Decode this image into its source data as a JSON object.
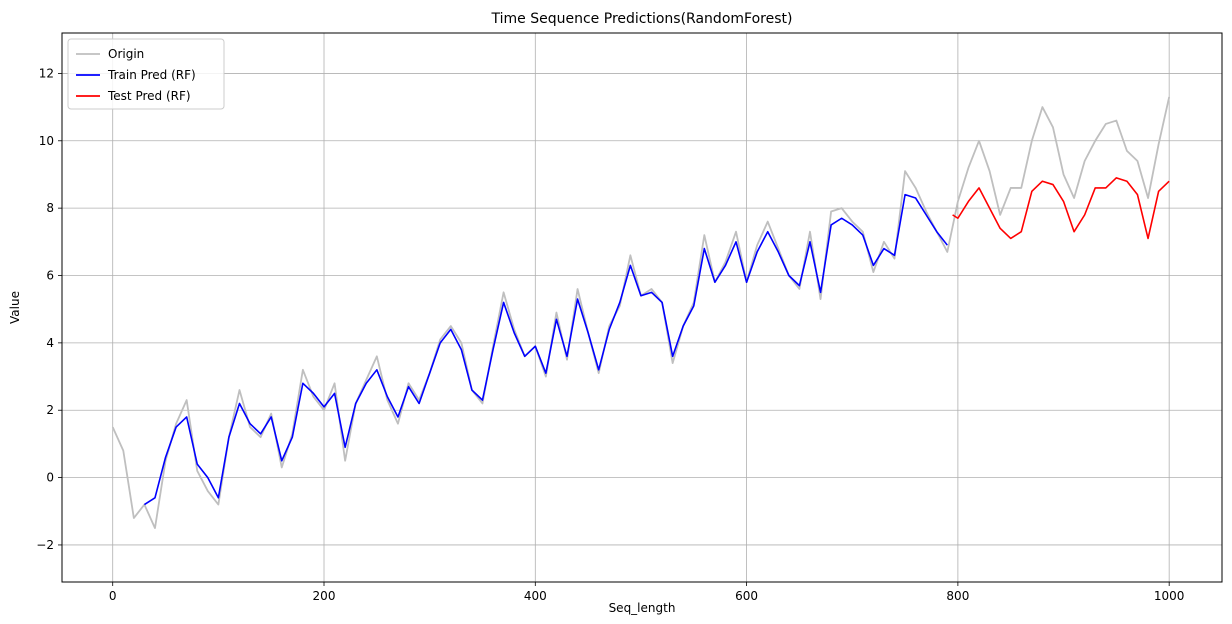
{
  "chart_data": {
    "type": "line",
    "title": "Time Sequence Predictions(RandomForest)",
    "xlabel": "Seq_length",
    "ylabel": "Value",
    "xlim": [
      -48,
      1050
    ],
    "ylim": [
      -3.1,
      13.2
    ],
    "xticks": [
      0,
      200,
      400,
      600,
      800,
      1000
    ],
    "xtick_labels": [
      "0",
      "200",
      "400",
      "600",
      "800",
      "1000"
    ],
    "yticks": [
      -2,
      0,
      2,
      4,
      6,
      8,
      10,
      12
    ],
    "ytick_labels": [
      "−2",
      "0",
      "2",
      "4",
      "6",
      "8",
      "10",
      "12"
    ],
    "grid": true,
    "legend_position": "top-left",
    "series": [
      {
        "name": "Origin",
        "color": "#bfbfbf",
        "x": [
          0,
          10,
          20,
          30,
          40,
          50,
          60,
          70,
          80,
          90,
          100,
          110,
          120,
          130,
          140,
          150,
          160,
          170,
          180,
          190,
          200,
          210,
          220,
          230,
          240,
          250,
          260,
          270,
          280,
          290,
          300,
          310,
          320,
          330,
          340,
          350,
          360,
          370,
          380,
          390,
          400,
          410,
          420,
          430,
          440,
          450,
          460,
          470,
          480,
          490,
          500,
          510,
          520,
          530,
          540,
          550,
          560,
          570,
          580,
          590,
          600,
          610,
          620,
          630,
          640,
          650,
          660,
          670,
          680,
          690,
          700,
          710,
          720,
          730,
          740,
          750,
          760,
          770,
          780,
          790,
          800,
          810,
          820,
          830,
          840,
          850,
          860,
          870,
          880,
          890,
          900,
          910,
          920,
          930,
          940,
          950,
          960,
          970,
          980,
          990,
          1000
        ],
        "values": [
          1.5,
          0.8,
          -1.2,
          -0.8,
          -1.5,
          0.5,
          1.6,
          2.3,
          0.2,
          -0.4,
          -0.8,
          1.2,
          2.6,
          1.5,
          1.2,
          1.9,
          0.3,
          1.3,
          3.2,
          2.4,
          2.0,
          2.8,
          0.5,
          2.2,
          2.9,
          3.6,
          2.3,
          1.6,
          2.8,
          2.3,
          3.1,
          4.1,
          4.5,
          4.0,
          2.6,
          2.2,
          3.9,
          5.5,
          4.4,
          3.6,
          3.9,
          3.0,
          4.9,
          3.5,
          5.6,
          4.3,
          3.1,
          4.5,
          5.1,
          6.6,
          5.4,
          5.6,
          5.2,
          3.4,
          4.5,
          5.2,
          7.2,
          5.8,
          6.4,
          7.3,
          5.8,
          6.9,
          7.6,
          6.8,
          6.0,
          5.6,
          7.3,
          5.3,
          7.9,
          8.0,
          7.6,
          7.3,
          6.1,
          7.0,
          6.5,
          9.1,
          8.6,
          7.9,
          7.3,
          6.7,
          8.2,
          9.2,
          10.0,
          9.1,
          7.8,
          8.6,
          8.6,
          10.0,
          11.0,
          10.4,
          9.0,
          8.3,
          9.4,
          10.0,
          10.5,
          10.6,
          9.7,
          9.4,
          8.3,
          9.9,
          11.3
        ]
      },
      {
        "name": "Train Pred (RF)",
        "color": "#0000ff",
        "x": [
          30,
          40,
          50,
          60,
          70,
          80,
          90,
          100,
          110,
          120,
          130,
          140,
          150,
          160,
          170,
          180,
          190,
          200,
          210,
          220,
          230,
          240,
          250,
          260,
          270,
          280,
          290,
          300,
          310,
          320,
          330,
          340,
          350,
          360,
          370,
          380,
          390,
          400,
          410,
          420,
          430,
          440,
          450,
          460,
          470,
          480,
          490,
          500,
          510,
          520,
          530,
          540,
          550,
          560,
          570,
          580,
          590,
          600,
          610,
          620,
          630,
          640,
          650,
          660,
          670,
          680,
          690,
          700,
          710,
          720,
          730,
          740,
          750,
          760,
          770,
          780,
          790
        ],
        "values": [
          -0.8,
          -0.6,
          0.6,
          1.5,
          1.8,
          0.4,
          0.0,
          -0.6,
          1.2,
          2.2,
          1.6,
          1.3,
          1.8,
          0.5,
          1.2,
          2.8,
          2.5,
          2.1,
          2.5,
          0.9,
          2.2,
          2.8,
          3.2,
          2.4,
          1.8,
          2.7,
          2.2,
          3.1,
          4.0,
          4.4,
          3.8,
          2.6,
          2.3,
          3.8,
          5.2,
          4.3,
          3.6,
          3.9,
          3.1,
          4.7,
          3.6,
          5.3,
          4.3,
          3.2,
          4.4,
          5.2,
          6.3,
          5.4,
          5.5,
          5.2,
          3.6,
          4.5,
          5.1,
          6.8,
          5.8,
          6.3,
          7.0,
          5.8,
          6.7,
          7.3,
          6.7,
          6.0,
          5.7,
          7.0,
          5.5,
          7.5,
          7.7,
          7.5,
          7.2,
          6.3,
          6.8,
          6.6,
          8.4,
          8.3,
          7.8,
          7.3,
          6.9
        ]
      },
      {
        "name": "Test Pred (RF)",
        "color": "#ff0000",
        "x": [
          795,
          800,
          810,
          820,
          830,
          840,
          850,
          860,
          870,
          880,
          890,
          900,
          910,
          920,
          930,
          940,
          950,
          960,
          970,
          980,
          990,
          1000
        ],
        "values": [
          7.8,
          7.7,
          8.2,
          8.6,
          8.0,
          7.4,
          7.1,
          7.3,
          8.5,
          8.8,
          8.7,
          8.2,
          7.3,
          7.8,
          8.6,
          8.6,
          8.9,
          8.8,
          8.4,
          7.1,
          8.5,
          8.8
        ]
      }
    ]
  }
}
